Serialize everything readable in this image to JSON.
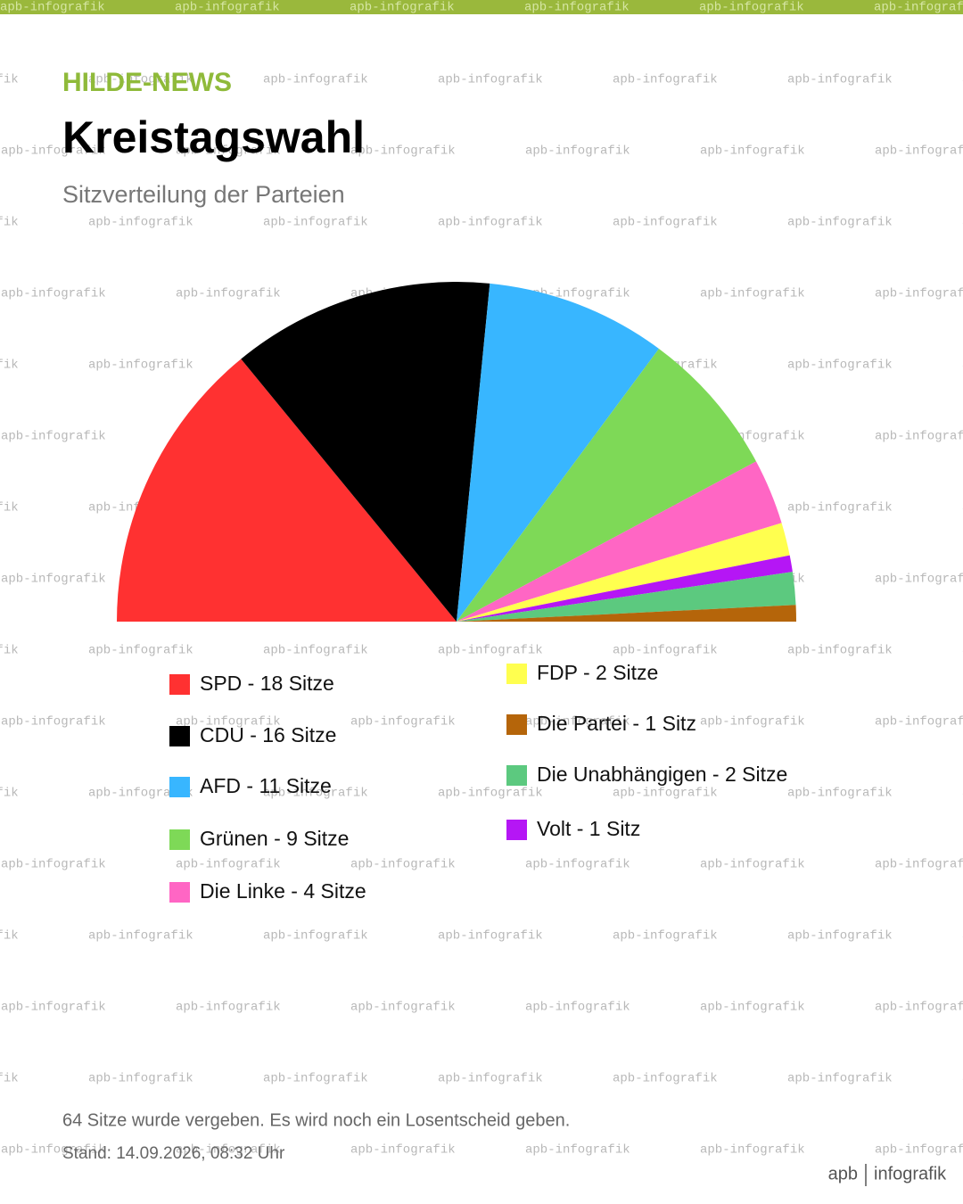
{
  "chart_data": {
    "type": "semicircle",
    "brand": "HILDE-NEWS",
    "title": "Kreistagswahl",
    "subtitle": "Sitzverteilung der Parteien",
    "watermark": "apb-infografik",
    "note": "64  Sitze wurde vergeben. Es wird noch ein Losentscheid geben.",
    "timestamp": "Stand: 14.09.2026, 08:32 Uhr",
    "logo": [
      "apb",
      "infografik"
    ],
    "series": [
      {
        "name": "SPD - 18 Sitze",
        "color": "#ff3131",
        "values": [
          18
        ]
      },
      {
        "name": "CDU - 16 Sitze",
        "color": "#000000",
        "values": [
          16
        ]
      },
      {
        "name": "AFD - 11 Sitze",
        "color": "#38b6ff",
        "values": [
          11
        ]
      },
      {
        "name": "Grünen - 9 Sitze",
        "color": "#7ed957",
        "values": [
          9
        ]
      },
      {
        "name": "Die Linke - 4 Sitze",
        "color": "#ff66c4",
        "values": [
          4
        ]
      },
      {
        "name": "FDP - 2 Sitze",
        "color": "#ffff4f",
        "values": [
          2
        ]
      },
      {
        "name": "Volt - 1 Sitz",
        "color": "#b516f5",
        "values": [
          1
        ]
      },
      {
        "name": "Die Unabhängigen - 2 Sitze",
        "color": "#5cc97f",
        "values": [
          2
        ]
      },
      {
        "name": "Die Partei - 1 Sitz",
        "color": "#b5650a",
        "values": [
          1
        ]
      }
    ]
  }
}
